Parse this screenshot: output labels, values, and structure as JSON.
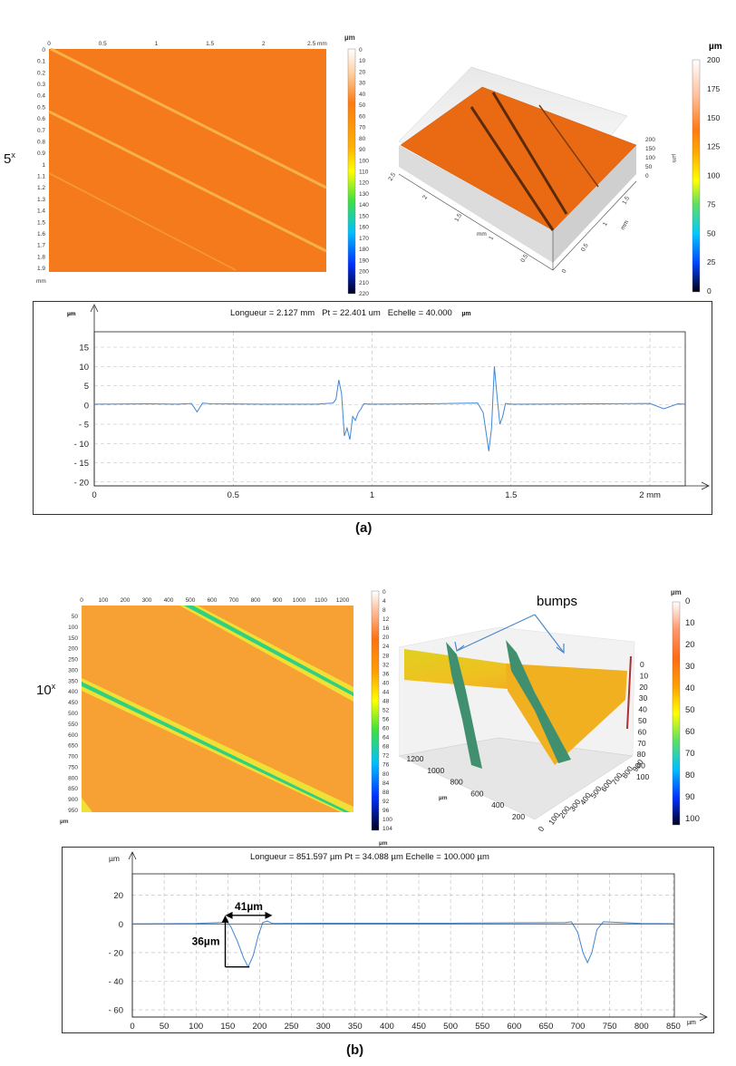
{
  "panel_a": {
    "label": "(a)",
    "magnification": "5",
    "magnification_sup": "x",
    "map": {
      "x_ticks": [
        "0",
        "0.5",
        "1",
        "1.5",
        "2",
        "2.5 mm"
      ],
      "y_ticks": [
        "0",
        "0.1",
        "0.2",
        "0.3",
        "0.4",
        "0.5",
        "0.6",
        "0.7",
        "0.8",
        "0.9",
        "1",
        "1.1",
        "1.2",
        "1.3",
        "1.4",
        "1.5",
        "1.6",
        "1.7",
        "1.8",
        "1.9"
      ],
      "y_unit": "mm",
      "colorbar_unit": "µm",
      "colorbar_ticks": [
        "0",
        "10",
        "20",
        "30",
        "40",
        "50",
        "60",
        "70",
        "80",
        "90",
        "100",
        "110",
        "120",
        "130",
        "140",
        "150",
        "160",
        "170",
        "180",
        "190",
        "200",
        "210",
        "220"
      ]
    },
    "surface3d": {
      "z_ticks": [
        "200",
        "150",
        "100",
        "50",
        "0"
      ],
      "z_unit": "µm",
      "x_ticks": [
        "2.5",
        "2",
        "1.5",
        "1",
        "0.5"
      ],
      "x_unit": "mm",
      "y_ticks": [
        "0",
        "0.5",
        "1",
        "1.5"
      ],
      "y_unit": "mm",
      "colorbar_unit": "µm",
      "colorbar_ticks": [
        "200",
        "175",
        "150",
        "125",
        "100",
        "75",
        "50",
        "25",
        "0"
      ]
    },
    "profile": {
      "title_parts": [
        "Longueur = 2.127 mm",
        "Pt = 22.401 um",
        "Echelle = 40.000",
        "µm"
      ],
      "y_unit": "µm",
      "x_unit": "mm",
      "chart_data": {
        "type": "line",
        "title": "Longueur = 2.127 mm  Pt = 22.401 um  Echelle = 40.000 µm",
        "xlabel": "mm",
        "ylabel": "µm",
        "xlim": [
          0,
          2.127
        ],
        "ylim": [
          -21,
          19
        ],
        "x_ticks": [
          0,
          0.5,
          1,
          1.5,
          2
        ],
        "x_tick_labels": [
          "0",
          "0.5",
          "1",
          "1.5",
          "2 mm"
        ],
        "y_ticks": [
          15,
          10,
          5,
          0,
          -5,
          -10,
          -15,
          -20
        ],
        "y_tick_labels": [
          "15",
          "10",
          "5",
          "0",
          "- 5",
          "- 10",
          "- 15",
          "- 20"
        ],
        "series": [
          {
            "name": "profile",
            "x": [
              0,
              0.2,
              0.3,
              0.35,
              0.37,
              0.39,
              0.42,
              0.6,
              0.8,
              0.86,
              0.87,
              0.88,
              0.89,
              0.9,
              0.91,
              0.92,
              0.93,
              0.94,
              0.95,
              0.96,
              0.97,
              1.0,
              1.2,
              1.38,
              1.4,
              1.42,
              1.43,
              1.44,
              1.45,
              1.46,
              1.47,
              1.48,
              1.5,
              1.55,
              1.8,
              2.0,
              2.05,
              2.1,
              2.127
            ],
            "y": [
              0.2,
              0.3,
              0.2,
              0.4,
              -1.8,
              0.5,
              0.3,
              0.2,
              0.2,
              0.5,
              1.5,
              6.5,
              3,
              -8,
              -6,
              -9,
              -3,
              -4,
              -2,
              -1,
              0.3,
              0.2,
              0.3,
              0.5,
              -2,
              -12,
              -6,
              10,
              2,
              -5,
              -3,
              0.4,
              0.2,
              0.2,
              0.3,
              0.4,
              -1,
              0.3,
              0.2
            ]
          }
        ]
      }
    }
  },
  "panel_b": {
    "label": "(b)",
    "magnification": "10",
    "magnification_sup": "x",
    "map": {
      "x_ticks": [
        "0",
        "100",
        "200",
        "300",
        "400",
        "500",
        "600",
        "700",
        "800",
        "900",
        "1000",
        "1100",
        "1200"
      ],
      "y_ticks": [
        "50",
        "100",
        "150",
        "200",
        "250",
        "300",
        "350",
        "400",
        "450",
        "500",
        "550",
        "600",
        "650",
        "700",
        "750",
        "800",
        "850",
        "900",
        "950"
      ],
      "y_unit": "µm",
      "colorbar_unit": "µm",
      "colorbar_ticks": [
        "0",
        "4",
        "8",
        "12",
        "16",
        "20",
        "24",
        "28",
        "32",
        "36",
        "40",
        "44",
        "48",
        "52",
        "56",
        "60",
        "64",
        "68",
        "72",
        "76",
        "80",
        "84",
        "88",
        "92",
        "96",
        "100",
        "104"
      ]
    },
    "surface3d": {
      "annotation": "bumps",
      "z_ticks": [
        "0",
        "10",
        "20",
        "30",
        "40",
        "50",
        "60",
        "70",
        "80",
        "90",
        "100"
      ],
      "x_ticks": [
        "1200",
        "1000",
        "800",
        "600",
        "400",
        "200"
      ],
      "x_unit": "µm",
      "y_ticks": [
        "0",
        "100",
        "200",
        "300",
        "400",
        "500",
        "600",
        "700",
        "800",
        "900"
      ],
      "colorbar_unit": "µm",
      "colorbar_ticks": [
        "0",
        "10",
        "20",
        "30",
        "40",
        "50",
        "60",
        "70",
        "80",
        "90",
        "100"
      ]
    },
    "profile": {
      "title": "Longueur = 851.597 µm   Pt = 34.088 µm   Echelle = 100.000 µm",
      "y_unit": "µm",
      "x_unit": "µm",
      "width_annotation": "41µm",
      "depth_annotation": "36µm",
      "chart_data": {
        "type": "line",
        "title": "Longueur = 851.597 µm   Pt = 34.088 µm   Echelle = 100.000 µm",
        "xlabel": "µm",
        "ylabel": "µm",
        "xlim": [
          0,
          851.597
        ],
        "ylim": [
          -65,
          35
        ],
        "x_ticks": [
          0,
          50,
          100,
          150,
          200,
          250,
          300,
          350,
          400,
          450,
          500,
          550,
          600,
          650,
          700,
          750,
          800,
          850
        ],
        "y_ticks": [
          20,
          0,
          -20,
          -40,
          -60
        ],
        "y_tick_labels": [
          "20",
          "0",
          "- 20",
          "- 40",
          "- 60"
        ],
        "series": [
          {
            "name": "profile",
            "x": [
              0,
              100,
              140,
              148,
              155,
              165,
              175,
              182,
              190,
              198,
              205,
              212,
              220,
              300,
              500,
              680,
              690,
              700,
              708,
              715,
              722,
              730,
              740,
              800,
              851.6
            ],
            "y": [
              0,
              0.3,
              1,
              2,
              -2,
              -12,
              -24,
              -30,
              -22,
              -8,
              1,
              2,
              0.3,
              0.5,
              0.5,
              1,
              1.5,
              -6,
              -20,
              -27,
              -20,
              -4,
              1.5,
              0.3,
              0.2
            ]
          }
        ]
      }
    }
  }
}
